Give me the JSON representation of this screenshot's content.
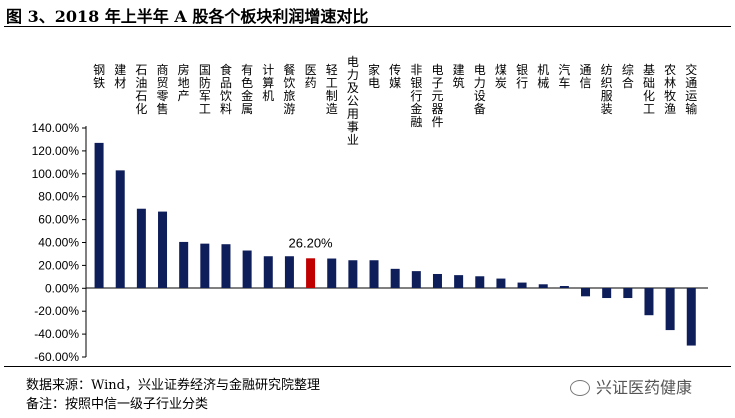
{
  "title": "图 3、2018 年上半年 A 股各个板块利润增速对比",
  "source": "数据来源：Wind，兴业证券经济与金融研究院整理",
  "note": "备注：按照中信一级子行业分类",
  "watermark": "兴证医药健康",
  "colors": {
    "bar": "#0e1e5b",
    "highlight": "#c00000"
  },
  "chart_data": {
    "type": "bar",
    "categories": [
      "钢铁",
      "建材",
      "石油石化",
      "商贸零售",
      "房地产",
      "国防军工",
      "食品饮料",
      "有色金属",
      "计算机",
      "餐饮旅游",
      "医药",
      "轻工制造",
      "电力及公用事业",
      "家电",
      "传媒",
      "非银行金融",
      "电子元器件",
      "建筑",
      "电力设备",
      "煤炭",
      "银行",
      "机械",
      "汽车",
      "通信",
      "纺织服装",
      "综合",
      "基础化工",
      "农林牧渔",
      "交通运输"
    ],
    "values": [
      127,
      103,
      69.5,
      67,
      40.5,
      39,
      38.5,
      33,
      28,
      28,
      26.2,
      26,
      24.5,
      24.5,
      17,
      15,
      12.5,
      11.5,
      10.5,
      8.5,
      5,
      3.5,
      2,
      -7,
      -8.5,
      -8.5,
      -23.5,
      -36.5,
      -50
    ],
    "highlight_index": 10,
    "highlight_label": "26.20%",
    "ylim": [
      -60,
      140
    ],
    "yticks": [
      "140.00%",
      "120.00%",
      "100.00%",
      "80.00%",
      "60.00%",
      "40.00%",
      "20.00%",
      "0.00%",
      "-20.00%",
      "-40.00%",
      "-60.00%"
    ]
  }
}
